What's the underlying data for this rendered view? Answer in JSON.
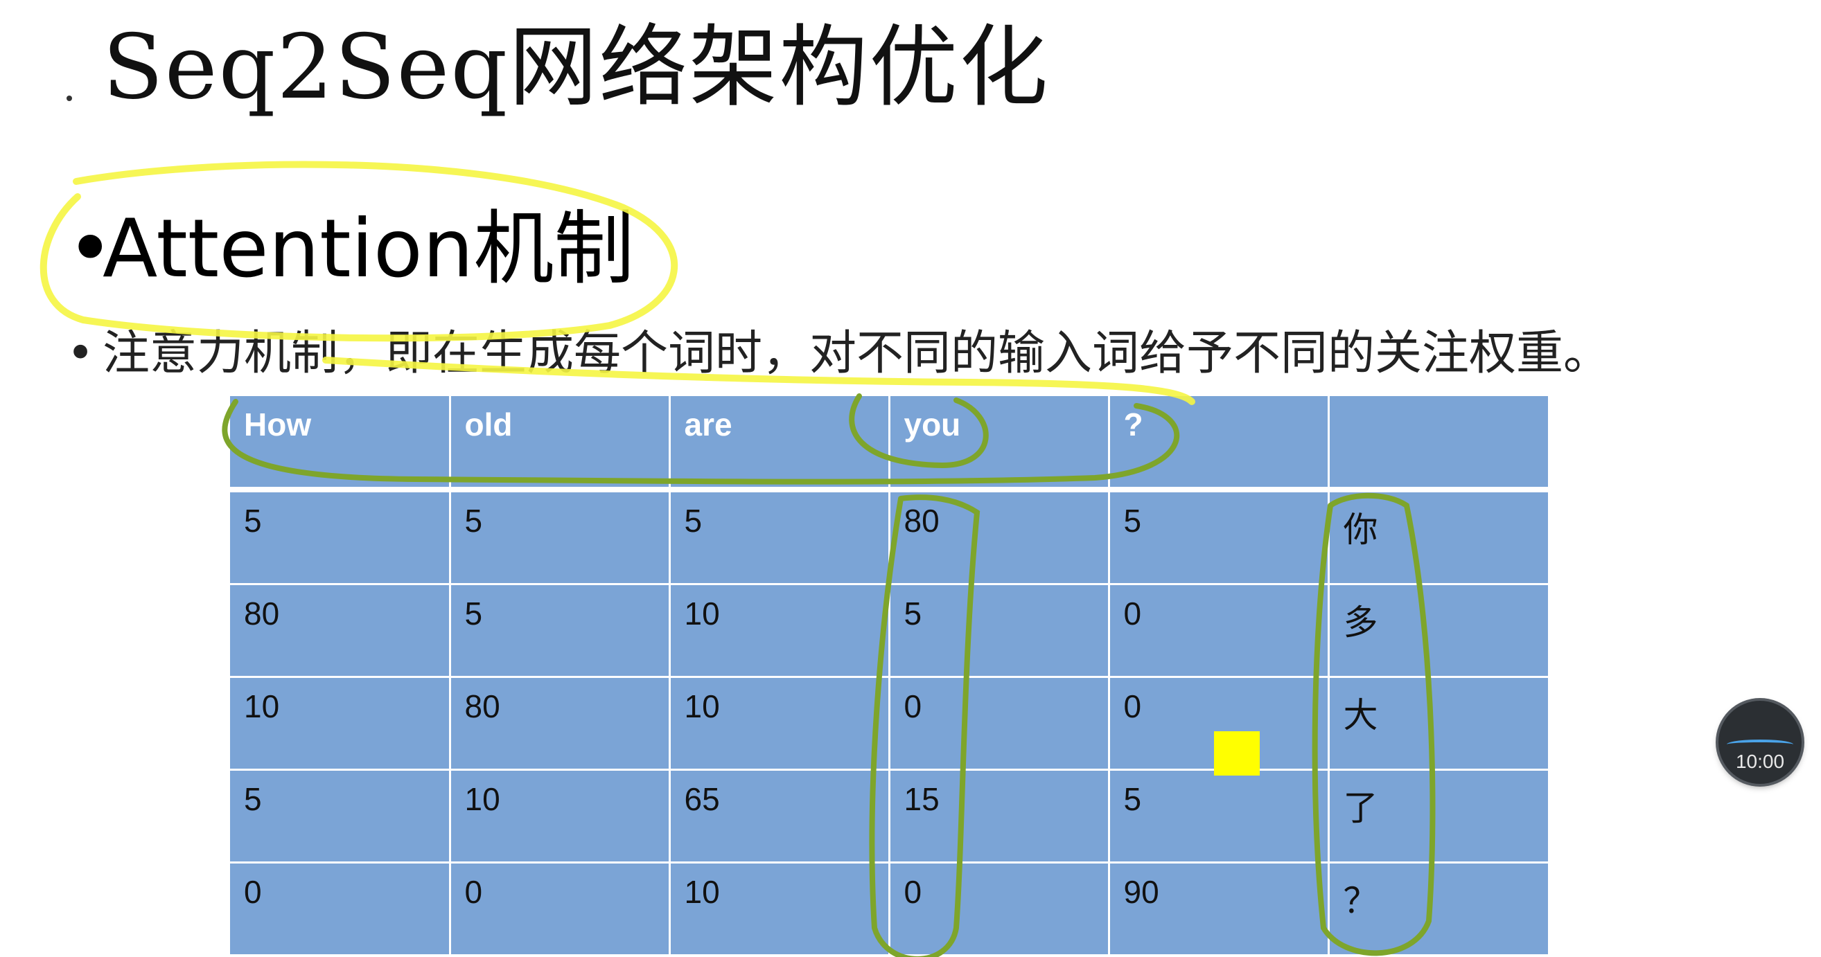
{
  "slide": {
    "title": "Seq2Seq网络架构优化",
    "heading_bullet": "•",
    "heading": "Attention机制",
    "sub_bullet": "•",
    "subtext": "注意力机制，即在生成每个词时，对不同的输入词给予不同的关注权重。"
  },
  "table": {
    "headers": [
      "How",
      "old",
      "are",
      "you",
      "?",
      ""
    ],
    "rows": [
      [
        "5",
        "5",
        "5",
        "80",
        "5",
        "你"
      ],
      [
        "80",
        "5",
        "10",
        "5",
        "0",
        "多"
      ],
      [
        "10",
        "80",
        "10",
        "0",
        "0",
        "大"
      ],
      [
        "5",
        "10",
        "65",
        "15",
        "5",
        "了"
      ],
      [
        "0",
        "0",
        "10",
        "0",
        "90",
        "？"
      ]
    ]
  },
  "timer": {
    "time": "10:00"
  },
  "colors": {
    "table_cell": "#7ba4d6",
    "highlight_yellow": "#f5f542",
    "highlight_green": "#7ea52b"
  }
}
